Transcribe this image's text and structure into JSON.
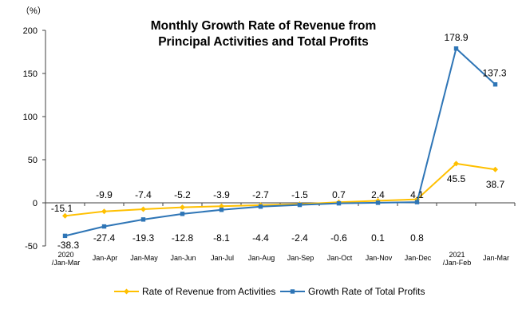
{
  "chart_data": {
    "type": "line",
    "title": [
      "Monthly Growth Rate of Revenue from",
      "Principal Activities  and Total Profits"
    ],
    "yunit": "（%）",
    "ylim": [
      -50,
      200
    ],
    "yticks": [
      "200",
      "150",
      "100",
      "50",
      "0",
      "-50"
    ],
    "ytick_values": [
      200,
      150,
      100,
      50,
      0,
      -50
    ],
    "grid": false,
    "legend_position": "bottom",
    "categories": [
      [
        "2020",
        "/Jan-Mar"
      ],
      [
        "Jan-Apr"
      ],
      [
        "Jan-May"
      ],
      [
        "Jan-Jun"
      ],
      [
        "Jan-Jul"
      ],
      [
        "Jan-Aug"
      ],
      [
        "Jan-Sep"
      ],
      [
        "Jan-Oct"
      ],
      [
        "Jan-Nov"
      ],
      [
        "Jan-Dec"
      ],
      [
        "2021",
        "/Jan-Feb"
      ],
      [
        "Jan-Mar"
      ]
    ],
    "series": [
      {
        "name": "Rate of Revenue from Activities",
        "color": "#FFC000",
        "marker": "diamond",
        "values": [
          -15.1,
          -9.9,
          -7.4,
          -5.2,
          -3.9,
          -2.7,
          -1.5,
          0.7,
          2.4,
          4.1,
          45.5,
          38.7
        ],
        "labels": [
          "-15.1",
          "-9.9",
          "-7.4",
          "-5.2",
          "-3.9",
          "-2.7",
          "-1.5",
          "0.7",
          "2.4",
          "4.1",
          "45.5",
          "38.7"
        ]
      },
      {
        "name": "Growth Rate of Total Profits",
        "color": "#2E75B6",
        "marker": "square",
        "values": [
          -38.3,
          -27.4,
          -19.3,
          -12.8,
          -8.1,
          -4.4,
          -2.4,
          -0.6,
          0.1,
          0.8,
          178.9,
          137.3
        ],
        "labels": [
          "-38.3",
          "-27.4",
          "-19.3",
          "-12.8",
          "-8.1",
          "-4.4",
          "-2.4",
          "-0.6",
          "0.1",
          "0.8",
          "178.9",
          "137.3"
        ]
      }
    ]
  }
}
